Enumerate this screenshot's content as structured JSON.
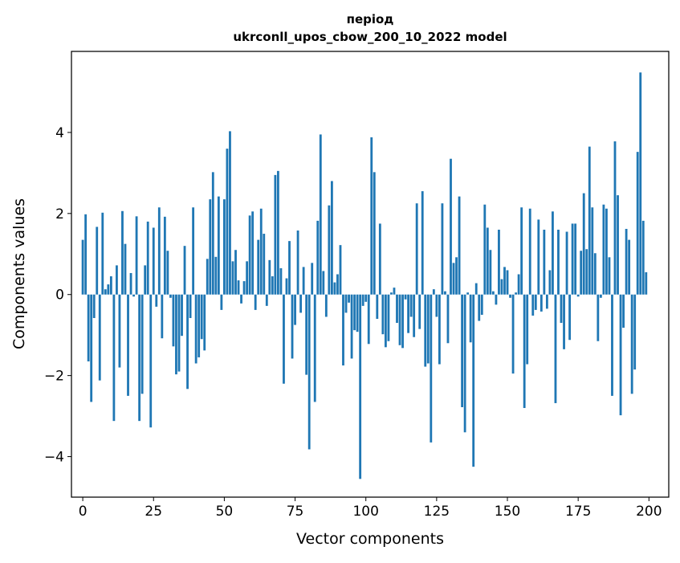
{
  "chart_data": {
    "type": "bar",
    "title_line1": "період",
    "title_line2": "ukrconll_upos_cbow_200_10_2022 model",
    "xlabel": "Vector components",
    "ylabel": "Components values",
    "xlim": [
      -4,
      207
    ],
    "ylim": [
      -5.0,
      6.0
    ],
    "xticks": [
      0,
      25,
      50,
      75,
      100,
      125,
      150,
      175,
      200
    ],
    "yticks": [
      -4,
      -2,
      0,
      2,
      4
    ],
    "ytick_labels": [
      "−4",
      "−2",
      "0",
      "2",
      "4"
    ],
    "bar_color": "#1f77b4",
    "grid": false,
    "legend": false,
    "x": [
      0,
      1,
      2,
      3,
      4,
      5,
      6,
      7,
      8,
      9,
      10,
      11,
      12,
      13,
      14,
      15,
      16,
      17,
      18,
      19,
      20,
      21,
      22,
      23,
      24,
      25,
      26,
      27,
      28,
      29,
      30,
      31,
      32,
      33,
      34,
      35,
      36,
      37,
      38,
      39,
      40,
      41,
      42,
      43,
      44,
      45,
      46,
      47,
      48,
      49,
      50,
      51,
      52,
      53,
      54,
      55,
      56,
      57,
      58,
      59,
      60,
      61,
      62,
      63,
      64,
      65,
      66,
      67,
      68,
      69,
      70,
      71,
      72,
      73,
      74,
      75,
      76,
      77,
      78,
      79,
      80,
      81,
      82,
      83,
      84,
      85,
      86,
      87,
      88,
      89,
      90,
      91,
      92,
      93,
      94,
      95,
      96,
      97,
      98,
      99,
      100,
      101,
      102,
      103,
      104,
      105,
      106,
      107,
      108,
      109,
      110,
      111,
      112,
      113,
      114,
      115,
      116,
      117,
      118,
      119,
      120,
      121,
      122,
      123,
      124,
      125,
      126,
      127,
      128,
      129,
      130,
      131,
      132,
      133,
      134,
      135,
      136,
      137,
      138,
      139,
      140,
      141,
      142,
      143,
      144,
      145,
      146,
      147,
      148,
      149,
      150,
      151,
      152,
      153,
      154,
      155,
      156,
      157,
      158,
      159,
      160,
      161,
      162,
      163,
      164,
      165,
      166,
      167,
      168,
      169,
      170,
      171,
      172,
      173,
      174,
      175,
      176,
      177,
      178,
      179,
      180,
      181,
      182,
      183,
      184,
      185,
      186,
      187,
      188,
      189,
      190,
      191,
      192,
      193,
      194,
      195,
      196,
      197,
      198,
      199
    ],
    "values": [
      1.35,
      1.98,
      -1.65,
      -2.65,
      -0.58,
      1.67,
      -2.12,
      2.02,
      0.13,
      0.25,
      0.45,
      -3.12,
      0.72,
      -1.8,
      2.06,
      1.25,
      -2.5,
      0.53,
      -0.05,
      1.93,
      -3.12,
      -2.45,
      0.72,
      1.8,
      -3.28,
      1.65,
      -0.3,
      2.15,
      -1.08,
      1.92,
      1.08,
      -0.08,
      -1.28,
      -1.97,
      -1.9,
      -1.02,
      1.2,
      -2.33,
      -0.58,
      2.15,
      -1.7,
      -1.55,
      -1.1,
      -1.38,
      0.88,
      2.35,
      3.02,
      0.93,
      2.42,
      -0.38,
      2.35,
      3.6,
      4.03,
      0.82,
      1.1,
      0.35,
      -0.22,
      0.33,
      0.82,
      1.95,
      2.05,
      -0.38,
      1.35,
      2.12,
      1.5,
      -0.28,
      0.85,
      0.45,
      2.95,
      3.05,
      0.65,
      -2.2,
      0.4,
      1.32,
      -1.58,
      -0.75,
      1.58,
      -0.45,
      0.68,
      -1.98,
      -3.82,
      0.78,
      -2.65,
      1.82,
      3.95,
      0.58,
      -0.55,
      2.2,
      2.8,
      0.3,
      0.5,
      1.22,
      -1.75,
      -0.45,
      -0.2,
      -1.58,
      -0.88,
      -0.92,
      -4.55,
      -0.28,
      -0.18,
      -1.22,
      3.88,
      3.02,
      -0.6,
      1.75,
      -0.98,
      -1.3,
      -1.15,
      0.05,
      0.17,
      -0.7,
      -1.25,
      -1.32,
      -0.12,
      -0.95,
      -0.55,
      -1.05,
      2.25,
      -0.85,
      2.55,
      -1.78,
      -1.7,
      -3.65,
      0.13,
      -0.55,
      -1.72,
      2.25,
      0.08,
      -1.2,
      3.35,
      0.78,
      0.92,
      2.42,
      -2.78,
      -3.4,
      0.05,
      -1.18,
      -4.25,
      0.28,
      -0.65,
      -0.5,
      2.22,
      1.65,
      1.1,
      0.08,
      -0.25,
      1.6,
      0.38,
      0.68,
      0.6,
      -0.08,
      -1.95,
      0.05,
      0.5,
      2.15,
      -2.8,
      -1.72,
      2.12,
      -0.52,
      -0.38,
      1.85,
      -0.42,
      1.6,
      -0.35,
      0.6,
      2.05,
      -2.68,
      1.6,
      -0.7,
      -1.35,
      1.55,
      -1.12,
      1.75,
      1.75,
      -0.05,
      1.08,
      2.5,
      1.12,
      3.65,
      2.15,
      1.02,
      -1.15,
      -0.08,
      2.22,
      2.12,
      0.92,
      -2.5,
      3.78,
      2.45,
      -2.98,
      -0.82,
      1.62,
      1.35,
      -2.45,
      -1.85,
      3.52,
      5.48,
      1.82,
      0.55
    ]
  }
}
